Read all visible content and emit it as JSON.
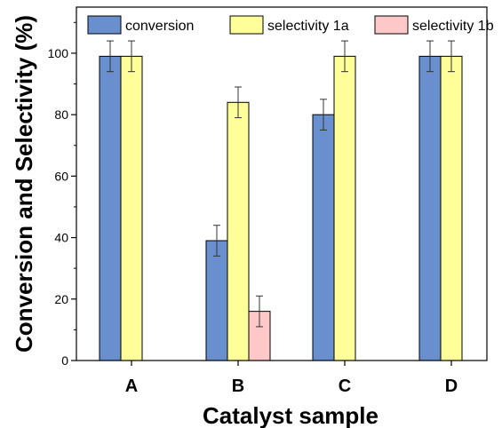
{
  "chart_data": {
    "type": "bar",
    "categories": [
      "A",
      "B",
      "C",
      "D"
    ],
    "series": [
      {
        "name": "conversion",
        "color": "#6a8fcf",
        "values": [
          99,
          39,
          80,
          99
        ],
        "errors": [
          5,
          5,
          5,
          5
        ]
      },
      {
        "name": "selectivity 1a",
        "color": "#ffff99",
        "values": [
          99,
          84,
          99,
          99
        ],
        "errors": [
          5,
          5,
          5,
          5
        ]
      },
      {
        "name": "selectivity 1b",
        "color": "#ffc8c8",
        "values": [
          null,
          16,
          null,
          null
        ],
        "errors": [
          null,
          5,
          null,
          null
        ]
      }
    ],
    "xlabel": "Catalyst sample",
    "ylabel": "Conversion and Selectivity (%)",
    "ylim": [
      0,
      115
    ],
    "yticks": [
      0,
      20,
      40,
      60,
      80,
      100
    ],
    "grid": false,
    "legend_position": "top"
  }
}
